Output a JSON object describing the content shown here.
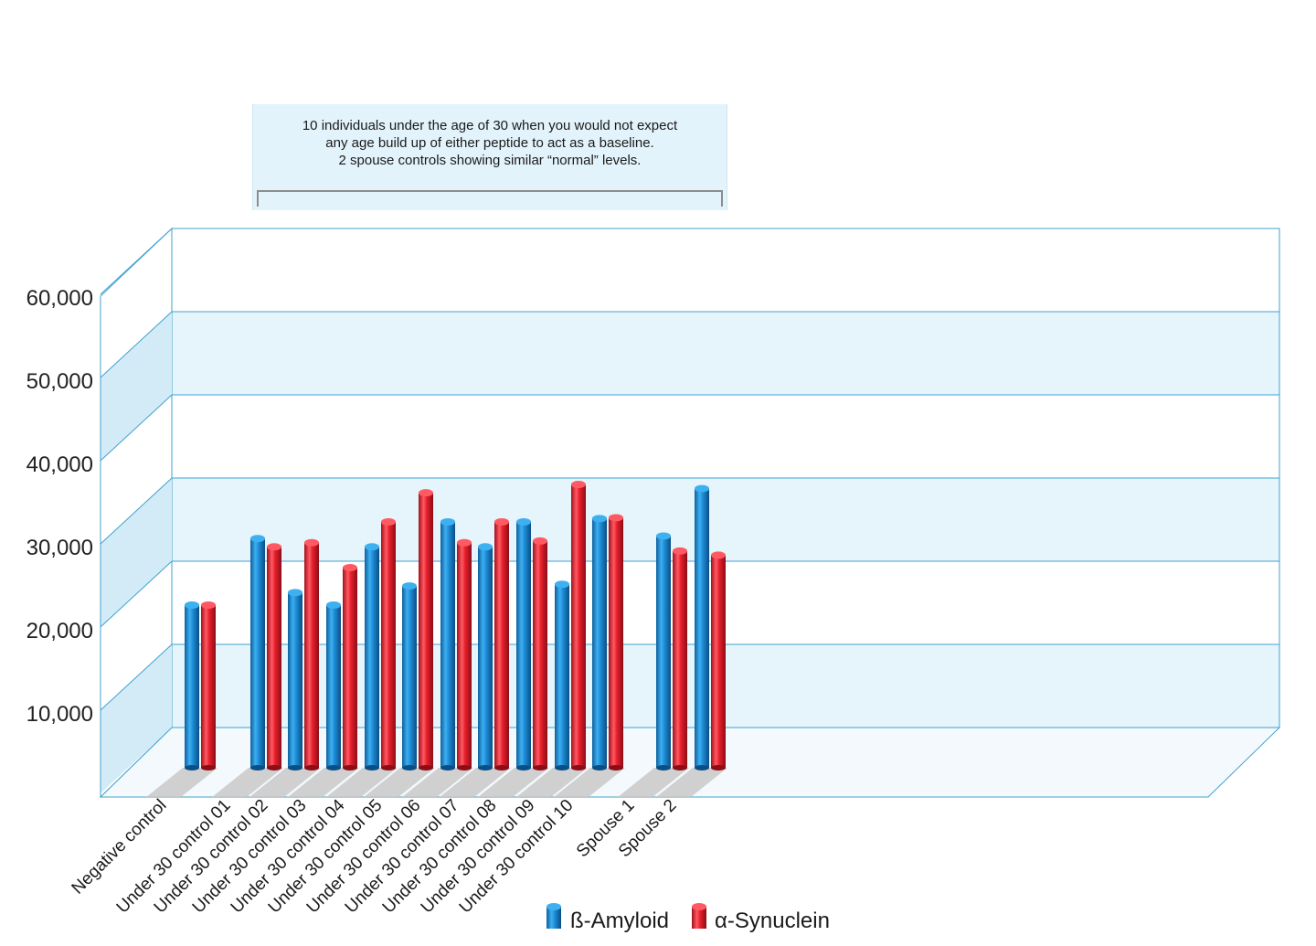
{
  "annotation": {
    "line1": "10 individuals under the age of 30 when you would not expect",
    "line2": "any age build up of either peptide to act as a baseline.",
    "line3": "2 spouse controls showing similar “normal” levels."
  },
  "chart_data": {
    "type": "bar",
    "title": "",
    "xlabel": "",
    "ylabel": "",
    "ylim": [
      0,
      60000
    ],
    "yticks": [
      "10,000",
      "20,000",
      "30,000",
      "40,000",
      "50,000",
      "60,000"
    ],
    "ytick_values": [
      10000,
      20000,
      30000,
      40000,
      50000,
      60000
    ],
    "categories": [
      "Negative control",
      "Under 30 control 01",
      "Under 30 control 02",
      "Under 30 control 03",
      "Under 30 control 04",
      "Under 30 control 05",
      "Under 30 control 06",
      "Under 30 control 07",
      "Under 30 control 08",
      "Under 30 control 09",
      "Under 30 control 10",
      "Spouse 1",
      "Spouse 2"
    ],
    "series": [
      {
        "name": "ß-Amyloid",
        "color": "#1e8ed8",
        "values": [
          20000,
          28000,
          21500,
          20000,
          27000,
          22300,
          30000,
          27000,
          30000,
          22500,
          30400,
          28300,
          34000
        ]
      },
      {
        "name": "α-Synuclein",
        "color": "#e8202d",
        "values": [
          20000,
          27000,
          27500,
          24500,
          30000,
          33500,
          27500,
          30000,
          27700,
          34500,
          30500,
          26500,
          26000
        ]
      }
    ],
    "legend_position": "bottom",
    "grid": true
  }
}
